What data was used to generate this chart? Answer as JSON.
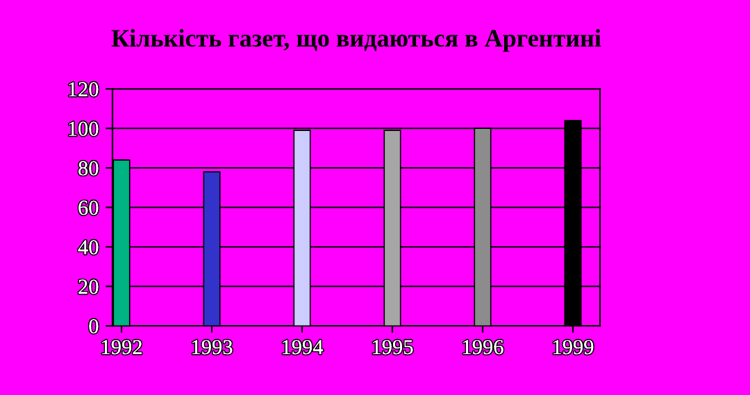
{
  "chart_data": {
    "type": "bar",
    "title": "Кількість газет, що видаються в Аргентині",
    "categories": [
      "1992",
      "1993",
      "1994",
      "1995",
      "1996",
      "1999"
    ],
    "values": [
      84,
      78,
      99,
      99,
      100,
      104
    ],
    "colors": [
      "#00b383",
      "#3333cc",
      "#ccccff",
      "#a6a6a6",
      "#8c8c8c",
      "#000000"
    ],
    "ylim": [
      0,
      120
    ],
    "yticks": [
      0,
      20,
      40,
      60,
      80,
      100,
      120
    ],
    "grid": "y",
    "legend": false
  }
}
